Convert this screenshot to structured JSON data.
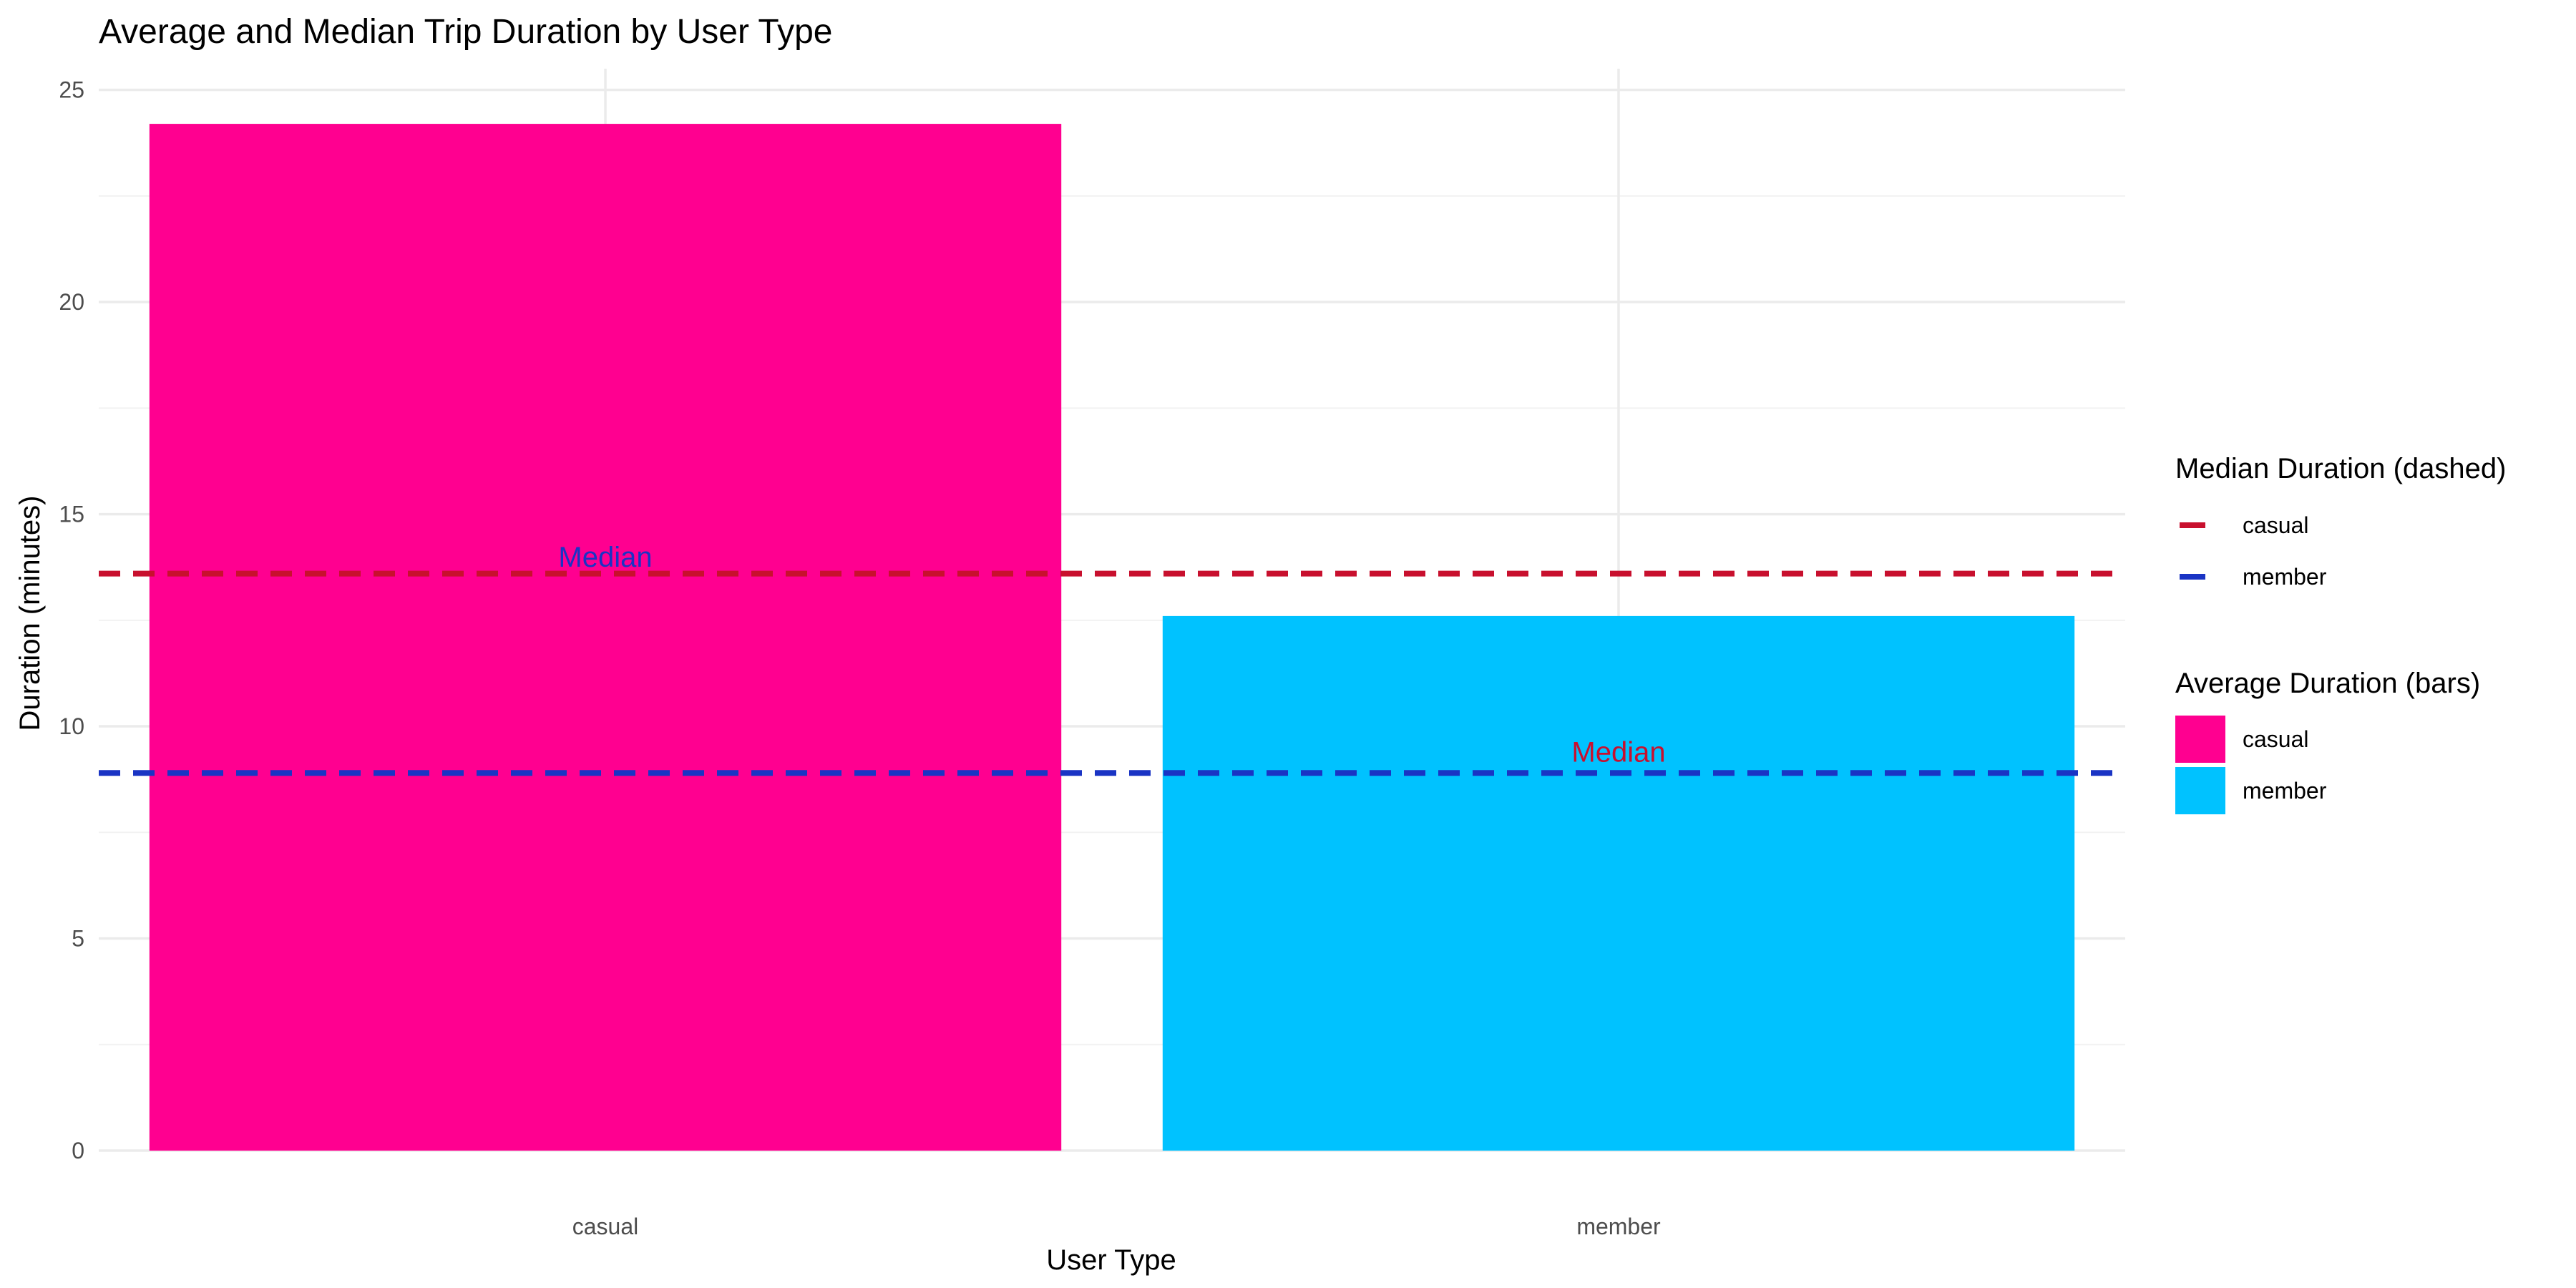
{
  "chart_data": {
    "type": "bar",
    "title": "Average and Median Trip Duration by User Type",
    "xlabel": "User Type",
    "ylabel": "Duration (minutes)",
    "categories": [
      "casual",
      "member"
    ],
    "ylim": [
      0,
      25.5
    ],
    "yticks": [
      0,
      5,
      10,
      15,
      20,
      25
    ],
    "grid": true,
    "bars": {
      "name": "Average Duration (bars)",
      "values": [
        24.2,
        12.6
      ],
      "colors": [
        "#ff0090",
        "#00c2ff"
      ]
    },
    "median_lines": {
      "name": "Median Duration (dashed)",
      "series": [
        {
          "name": "casual",
          "value": 13.6,
          "color": "#c8102e"
        },
        {
          "name": "member",
          "value": 8.9,
          "color": "#1a34c4"
        }
      ]
    },
    "annotations": [
      {
        "text": "Median",
        "category": "casual",
        "value": 14.0,
        "color": "#1a34c4"
      },
      {
        "text": "Median",
        "category": "member",
        "value": 9.4,
        "color": "#c8102e"
      }
    ],
    "legend_position": "right"
  }
}
